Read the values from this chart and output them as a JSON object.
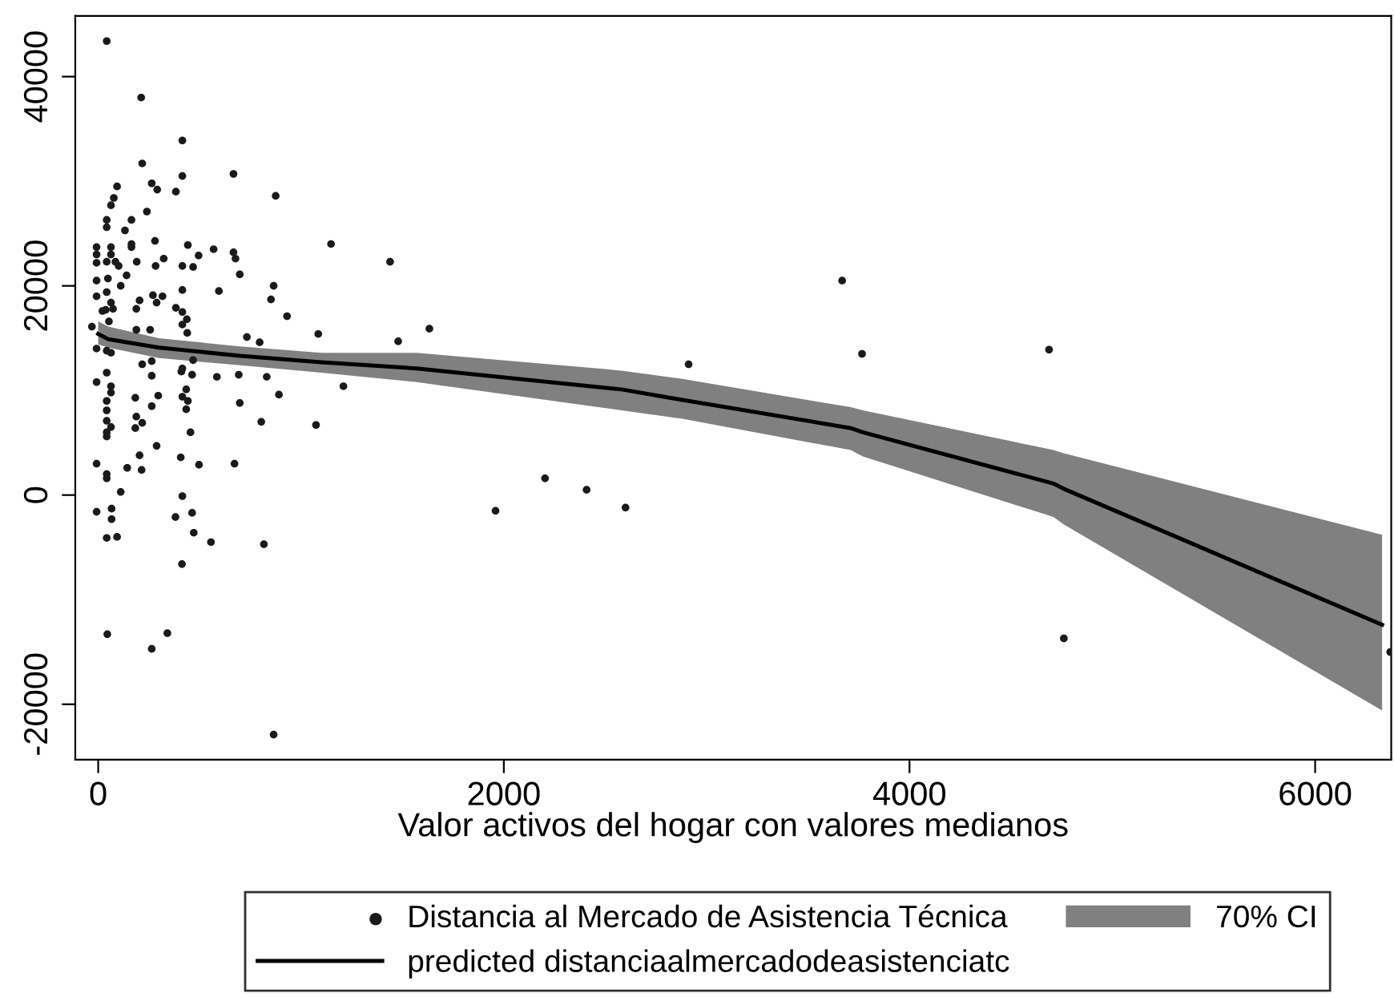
{
  "chart_data": {
    "type": "scatter",
    "xlabel": "Valor activos del hogar con valores medianos",
    "xlim": [
      -113,
      6375
    ],
    "ylim": [
      -25300,
      45800
    ],
    "xticks": [
      0,
      2000,
      4000,
      6000
    ],
    "yticks": [
      -20000,
      0,
      20000,
      40000
    ],
    "grid": false,
    "legend": "bottom",
    "series": [
      {
        "name": "Distancia al Mercado de Asistencia Técnica",
        "color": "#1a1a1a",
        "marker": "circle",
        "x": [
          42,
          212,
          415,
          217,
          415,
          667,
          264,
          291,
          383,
          93,
          77,
          63,
          875,
          164,
          42,
          240,
          132,
          42,
          164,
          164,
          -8,
          -8,
          63,
          63,
          280,
          442,
          569,
          667,
          677,
          1148,
          1439,
          -8,
          42,
          85,
          101,
          190,
          283,
          323,
          415,
          468,
          495,
          140,
          698,
          -8,
          48,
          415,
          595,
          865,
          111,
          -8,
          42,
          204,
          270,
          317,
          288,
          852,
          63,
          37,
          73,
          21,
          53,
          188,
          383,
          415,
          437,
          415,
          439,
          931,
          733,
          796,
          1085,
          1479,
          1633,
          188,
          256,
          -31,
          -8,
          42,
          63,
          217,
          264,
          468,
          415,
          -8,
          42,
          264,
          410,
          463,
          585,
          693,
          831,
          63,
          63,
          42,
          42,
          42,
          63,
          42,
          42,
          183,
          296,
          264,
          415,
          434,
          442,
          434,
          188,
          217,
          183,
          891,
          698,
          804,
          1074,
          1209,
          455,
          288,
          204,
          -8,
          42,
          42,
          143,
          214,
          407,
          497,
          672,
          111,
          415,
          -8,
          66,
          66,
          381,
          463,
          471,
          42,
          93,
          556,
          817,
          413,
          45,
          341,
          264,
          865,
          3668,
          3766,
          4688,
          2911,
          2203,
          1959,
          2408,
          2600,
          4761,
          6370
        ],
        "values": [
          43400,
          38000,
          33900,
          31700,
          30500,
          30700,
          29800,
          29200,
          29000,
          29500,
          28400,
          27700,
          28600,
          26300,
          26300,
          27100,
          25300,
          25600,
          24000,
          23700,
          23700,
          23000,
          23700,
          23000,
          24300,
          23900,
          23500,
          23200,
          22600,
          24000,
          22300,
          22200,
          22300,
          22300,
          21900,
          22300,
          21900,
          22600,
          21900,
          21800,
          22900,
          21000,
          21100,
          20500,
          20700,
          19600,
          19500,
          20000,
          20000,
          19000,
          19400,
          18600,
          19100,
          19000,
          18400,
          18700,
          18400,
          17700,
          17800,
          17600,
          16600,
          17800,
          17900,
          17500,
          16800,
          16300,
          15500,
          17100,
          15100,
          14600,
          15400,
          14700,
          15900,
          15800,
          15800,
          16100,
          14000,
          13800,
          13600,
          12500,
          12800,
          12900,
          12100,
          10800,
          11700,
          11400,
          11800,
          11500,
          11300,
          11500,
          11300,
          10400,
          9800,
          9000,
          8100,
          7100,
          6500,
          6000,
          5600,
          9300,
          9500,
          8500,
          9400,
          10100,
          9000,
          8200,
          7500,
          6900,
          6400,
          9600,
          8800,
          7000,
          6700,
          10400,
          6000,
          4700,
          3800,
          3000,
          2000,
          1600,
          2600,
          2400,
          3600,
          2900,
          3000,
          300,
          -100,
          -1600,
          -1300,
          -2300,
          -2100,
          -1700,
          -3600,
          -4100,
          -4000,
          -4500,
          -4700,
          -6600,
          -13300,
          -13200,
          -14700,
          -22900,
          20500,
          13500,
          13900,
          12500,
          1600,
          -1500,
          500,
          -1200,
          -13700,
          -15000
        ]
      },
      {
        "type": "line",
        "name": "predicted distanciaalmercadodeasistenciatc",
        "color": "#000000",
        "line_style": "solid",
        "x": [
          0,
          50,
          300,
          700,
          1100,
          1570,
          2580,
          2880,
          3710,
          3770,
          4710,
          4760,
          6330
        ],
        "values": [
          15400,
          14900,
          14100,
          13300,
          12700,
          12100,
          10100,
          9100,
          6400,
          6000,
          1100,
          600,
          -12400
        ],
        "lower": [
          14400,
          14100,
          13100,
          12400,
          11700,
          10800,
          8100,
          7300,
          4300,
          3700,
          -2100,
          -2800,
          -20600
        ],
        "upper": [
          16600,
          16100,
          15000,
          14200,
          13600,
          13600,
          11900,
          11100,
          8400,
          8100,
          4300,
          4000,
          -3800
        ]
      },
      {
        "type": "area",
        "name": "70% CI",
        "color": "#808080"
      }
    ]
  }
}
